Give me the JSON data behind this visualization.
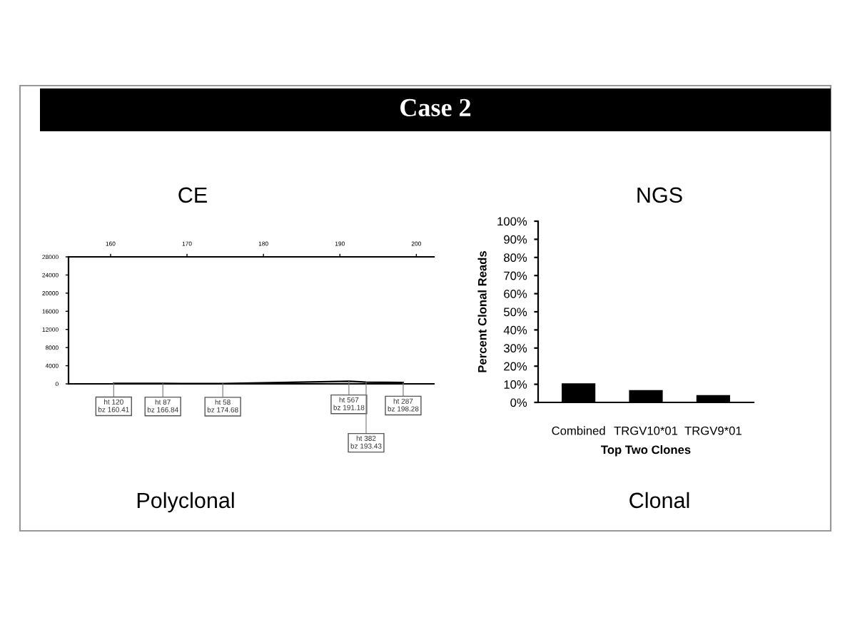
{
  "chart_data": [
    {
      "type": "line",
      "title": "CE",
      "x": [
        160.41,
        166.84,
        174.68,
        191.18,
        193.43,
        198.28
      ],
      "values": [
        120,
        87,
        58,
        567,
        382,
        287
      ],
      "color": "#000000",
      "marker": "none",
      "line_style": "solid",
      "xlim": [
        154.5,
        202.3
      ],
      "xticks": [
        160,
        170,
        180,
        190,
        200
      ],
      "ylim": [
        0,
        28000
      ],
      "yticks": [
        0,
        4000,
        8000,
        12000,
        16000,
        20000,
        24000,
        28000
      ],
      "grid": false,
      "legend": false,
      "annotations": [
        "Case 2",
        "Polyclonal",
        {
          "text": "ht 120\nbz 160.41",
          "x": 160.41,
          "y": 120
        },
        {
          "text": "ht 87\nbz 166.84",
          "x": 166.84,
          "y": 87
        },
        {
          "text": "ht 58\nbz 174.68",
          "x": 174.68,
          "y": 58
        },
        {
          "text": "ht 567\nbz 191.18",
          "x": 191.18,
          "y": 567
        },
        {
          "text": "ht 382\nbz 193.43",
          "x": 193.43,
          "y": 382
        },
        {
          "text": "ht 287\nbz 198.28",
          "x": 198.28,
          "y": 287
        }
      ]
    },
    {
      "type": "bar",
      "title": "NGS",
      "xlabel": "Top Two Clones",
      "ylabel": "Percent Clonal Reads",
      "categories": [
        "Combined",
        "TRGV10*01",
        "TRGV9*01"
      ],
      "values": [
        10.5,
        6.8,
        4
      ],
      "color": "#000000",
      "ylim": [
        0,
        100
      ],
      "yticks": [
        {
          "value": 0,
          "label": "0%"
        },
        {
          "value": 10,
          "label": "10%"
        },
        {
          "value": 20,
          "label": "20%"
        },
        {
          "value": 30,
          "label": "30%"
        },
        {
          "value": 40,
          "label": "40%"
        },
        {
          "value": 50,
          "label": "50%"
        },
        {
          "value": 60,
          "label": "60%"
        },
        {
          "value": 70,
          "label": "70%"
        },
        {
          "value": 80,
          "label": "80%"
        },
        {
          "value": 90,
          "label": "90%"
        },
        {
          "value": 100,
          "label": "100%"
        }
      ],
      "grid": false,
      "legend": false,
      "annotations": [
        "Clonal"
      ]
    }
  ]
}
